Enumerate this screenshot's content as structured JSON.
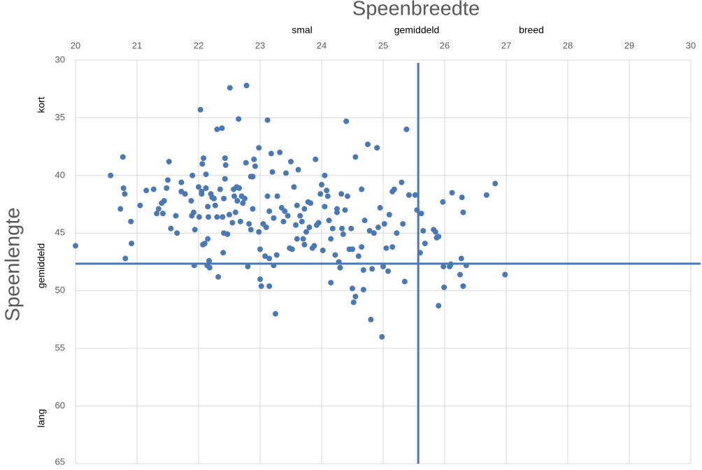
{
  "chart_data": {
    "type": "scatter",
    "title": "Speenbreedte",
    "y_label": "Speenlengte",
    "x_band_labels": [
      "smal",
      "gemiddeld",
      "breed"
    ],
    "y_band_labels": [
      "kort",
      "gemiddeld",
      "lang"
    ],
    "color": "#4a78b5",
    "grid": true,
    "y_inverted": true,
    "x_axis_position": "top",
    "reference_lines": {
      "x": 25.57,
      "y": 47.65,
      "color": "#4a78b0"
    },
    "xlim": [
      20,
      30
    ],
    "xticks": [
      20,
      21,
      22,
      23,
      24,
      25,
      26,
      27,
      28,
      29,
      30
    ],
    "ylim": [
      30,
      65
    ],
    "yticks": [
      30,
      35,
      40,
      45,
      50,
      55,
      60,
      65
    ],
    "x": [
      20.0,
      20.57,
      20.73,
      20.77,
      20.78,
      20.8,
      20.81,
      20.9,
      20.91,
      21.05,
      21.15,
      21.27,
      21.32,
      21.35,
      21.4,
      21.42,
      21.44,
      21.48,
      21.5,
      21.52,
      21.55,
      21.63,
      21.65,
      21.72,
      21.72,
      21.78,
      21.88,
      21.89,
      21.9,
      21.92,
      21.94,
      21.93,
      22.0,
      22.01,
      22.03,
      22.05,
      22.05,
      22.06,
      22.07,
      22.08,
      22.1,
      22.12,
      22.12,
      22.14,
      22.15,
      22.16,
      22.15,
      22.17,
      22.18,
      22.2,
      22.22,
      22.25,
      22.27,
      22.3,
      22.3,
      22.32,
      22.35,
      22.38,
      22.39,
      22.4,
      22.41,
      22.41,
      22.43,
      22.43,
      22.44,
      22.47,
      22.5,
      22.51,
      22.55,
      22.57,
      22.58,
      22.6,
      22.62,
      22.63,
      22.65,
      22.66,
      22.68,
      22.7,
      22.72,
      22.75,
      22.78,
      22.77,
      22.8,
      22.82,
      22.85,
      22.85,
      22.88,
      22.88,
      22.9,
      22.92,
      22.98,
      22.98,
      23.0,
      23.0,
      23.02,
      23.05,
      23.08,
      23.1,
      23.12,
      23.12,
      23.15,
      23.15,
      23.15,
      23.18,
      23.2,
      23.22,
      23.22,
      23.25,
      23.27,
      23.28,
      23.32,
      23.35,
      23.38,
      23.4,
      23.42,
      23.45,
      23.48,
      23.5,
      23.52,
      23.55,
      23.58,
      23.6,
      23.6,
      23.62,
      23.65,
      23.68,
      23.7,
      23.72,
      23.72,
      23.75,
      23.78,
      23.8,
      23.82,
      23.85,
      23.88,
      23.9,
      23.92,
      23.95,
      23.98,
      24.0,
      24.02,
      24.05,
      24.05,
      24.08,
      24.1,
      24.12,
      24.15,
      24.15,
      24.18,
      24.22,
      24.25,
      24.25,
      24.28,
      24.3,
      24.32,
      24.33,
      24.35,
      24.38,
      24.4,
      24.42,
      24.45,
      24.48,
      24.5,
      24.5,
      24.52,
      24.55,
      24.55,
      24.6,
      24.65,
      24.65,
      24.68,
      24.68,
      24.7,
      24.75,
      24.78,
      24.8,
      24.82,
      24.85,
      24.9,
      24.92,
      24.95,
      24.98,
      25.0,
      25.02,
      25.05,
      25.08,
      25.1,
      25.15,
      25.15,
      25.18,
      25.22,
      25.3,
      25.32,
      25.35,
      25.38,
      25.42,
      25.52,
      25.55,
      25.6,
      25.62,
      25.65,
      25.68,
      25.82,
      25.85,
      25.87,
      25.9,
      25.9,
      25.97,
      25.98,
      25.99,
      26.08,
      26.1,
      26.12,
      26.25,
      26.27,
      26.28,
      26.3,
      26.3,
      26.35,
      26.68,
      26.82,
      26.98
    ],
    "y": [
      46.1,
      40.0,
      42.9,
      38.4,
      41.1,
      41.6,
      47.2,
      44.0,
      45.9,
      42.6,
      41.3,
      41.2,
      43.3,
      42.9,
      42.4,
      43.3,
      42.2,
      41.1,
      40.4,
      38.8,
      44.6,
      43.5,
      45.0,
      41.4,
      40.6,
      41.6,
      42.2,
      43.5,
      40.0,
      43.2,
      44.7,
      47.8,
      41.0,
      43.6,
      34.3,
      41.4,
      41.6,
      39.0,
      46.0,
      38.5,
      45.9,
      39.9,
      41.1,
      47.8,
      45.5,
      43.6,
      42.7,
      47.4,
      48.0,
      41.6,
      41.9,
      42.0,
      42.6,
      43.6,
      36.0,
      48.8,
      41.2,
      35.9,
      43.6,
      46.7,
      42.0,
      45.0,
      40.3,
      38.5,
      39.1,
      45.1,
      43.4,
      32.4,
      44.1,
      41.2,
      41.8,
      43.2,
      41.0,
      42.2,
      35.1,
      41.1,
      44.0,
      41.8,
      42.4,
      42.0,
      32.2,
      38.9,
      47.9,
      44.2,
      40.1,
      44.7,
      40.1,
      42.9,
      38.6,
      39.2,
      44.9,
      37.6,
      46.4,
      49.0,
      49.6,
      44.2,
      47.0,
      44.5,
      41.8,
      35.2,
      47.2,
      43.1,
      49.6,
      38.1,
      39.7,
      47.8,
      43.7,
      52.0,
      46.9,
      41.8,
      38.0,
      42.8,
      44.0,
      43.1,
      39.8,
      43.5,
      46.3,
      38.8,
      46.4,
      41.0,
      44.3,
      45.5,
      42.6,
      39.5,
      43.5,
      44.0,
      45.5,
      42.9,
      46.0,
      44.9,
      42.3,
      44.5,
      42.4,
      46.3,
      46.1,
      38.6,
      44.3,
      44.1,
      41.6,
      40.8,
      46.5,
      40.0,
      42.7,
      41.3,
      41.8,
      43.9,
      45.5,
      49.3,
      44.6,
      46.9,
      43.2,
      42.9,
      47.5,
      48.0,
      41.6,
      44.6,
      45.1,
      43.0,
      35.3,
      41.8,
      46.4,
      44.6,
      49.8,
      46.4,
      51.0,
      50.5,
      38.4,
      47.0,
      46.2,
      41.2,
      48.2,
      49.9,
      43.9,
      37.3,
      44.8,
      52.5,
      48.1,
      45.0,
      37.6,
      44.5,
      42.8,
      54.0,
      47.9,
      44.2,
      46.3,
      48.3,
      43.4,
      46.2,
      41.4,
      41.2,
      45.0,
      40.6,
      44.2,
      49.2,
      36.0,
      41.7,
      41.7,
      43.0,
      46.7,
      43.3,
      44.8,
      45.9,
      44.7,
      44.9,
      45.4,
      51.3,
      45.3,
      42.3,
      47.9,
      49.7,
      47.9,
      47.7,
      41.5,
      48.6,
      47.2,
      41.9,
      49.6,
      43.2,
      47.8,
      41.7,
      40.7,
      48.6
    ]
  }
}
